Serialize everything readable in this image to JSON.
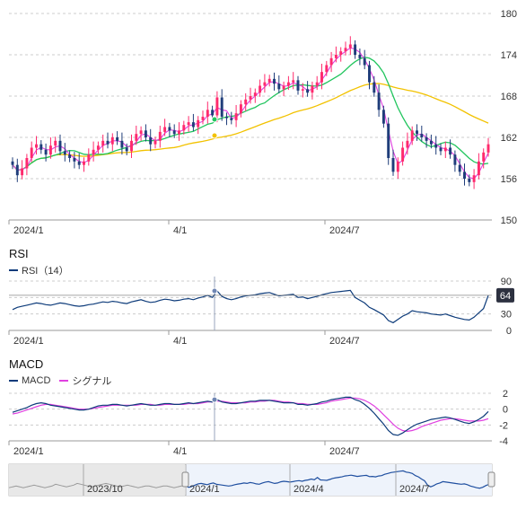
{
  "chart_data": [
    {
      "type": "candlestick",
      "name": "price",
      "ylim": [
        150,
        180
      ],
      "yticks": [
        150,
        156,
        162,
        168,
        174,
        180
      ],
      "xticks": [
        "2024/1",
        "4/1",
        "2024/7"
      ],
      "close": [
        158.0,
        156.5,
        157.5,
        159.0,
        160.5,
        161.0,
        160.2,
        159.5,
        160.8,
        161.5,
        160.0,
        159.5,
        159.0,
        158.5,
        158.0,
        158.5,
        159.5,
        160.2,
        160.8,
        161.5,
        161.0,
        162.0,
        161.5,
        160.5,
        160.0,
        161.5,
        162.5,
        163.0,
        162.0,
        161.0,
        161.5,
        162.8,
        163.5,
        163.0,
        162.5,
        163.0,
        163.8,
        164.2,
        163.5,
        164.5,
        165.0,
        166.0,
        165.2,
        167.8,
        165.0,
        164.8,
        164.5,
        165.5,
        166.8,
        167.5,
        168.0,
        168.5,
        169.5,
        170.0,
        170.5,
        169.8,
        169.0,
        169.5,
        170.0,
        170.3,
        168.8,
        169.0,
        168.5,
        169.5,
        170.0,
        171.5,
        172.5,
        173.5,
        174.0,
        174.5,
        175.0,
        175.5,
        174.0,
        173.5,
        172.5,
        170.0,
        168.5,
        166.0,
        164.0,
        159.0,
        157.0,
        158.5,
        160.5,
        161.5,
        163.0,
        162.5,
        162.0,
        161.5,
        161.0,
        160.5,
        160.0,
        160.5,
        159.5,
        158.0,
        157.0,
        156.0,
        155.5,
        156.5,
        158.5,
        159.8,
        161.0
      ],
      "rsi_ylim": [
        0,
        90
      ],
      "rsi_yticks": [
        0,
        30,
        60,
        90
      ],
      "macd_ylim": [
        -4,
        2
      ],
      "macd_yticks": [
        -4,
        -2,
        0,
        2
      ],
      "navigator_xticks": [
        "2023/10",
        "2024/1",
        "2024/4",
        "2024/7"
      ]
    }
  ],
  "rsi": {
    "title": "RSI",
    "legend": "RSI（14）",
    "current_badge": "64",
    "values": [
      38,
      42,
      44,
      46,
      48,
      50,
      49,
      47,
      46,
      48,
      50,
      49,
      47,
      45,
      44,
      45,
      47,
      48,
      50,
      52,
      51,
      53,
      52,
      50,
      49,
      52,
      54,
      56,
      53,
      51,
      52,
      55,
      57,
      56,
      54,
      55,
      57,
      58,
      56,
      59,
      61,
      64,
      60,
      72,
      62,
      58,
      56,
      58,
      61,
      63,
      64,
      65,
      67,
      68,
      69,
      66,
      63,
      64,
      65,
      66,
      60,
      61,
      58,
      60,
      62,
      65,
      67,
      69,
      70,
      71,
      72,
      73,
      60,
      55,
      50,
      42,
      38,
      33,
      28,
      18,
      14,
      20,
      26,
      30,
      36,
      34,
      33,
      32,
      30,
      29,
      28,
      30,
      27,
      24,
      22,
      20,
      19,
      24,
      32,
      40,
      64
    ],
    "color": "#0d3b7a"
  },
  "macd": {
    "title": "MACD",
    "legend_macd": "MACD",
    "legend_signal": "シグナル",
    "macd_values": [
      -0.4,
      -0.2,
      0,
      0.2,
      0.5,
      0.7,
      0.8,
      0.7,
      0.5,
      0.4,
      0.3,
      0.2,
      0.1,
      0,
      -0.1,
      -0.1,
      0,
      0.2,
      0.4,
      0.5,
      0.5,
      0.6,
      0.6,
      0.5,
      0.4,
      0.5,
      0.6,
      0.7,
      0.6,
      0.5,
      0.5,
      0.6,
      0.7,
      0.7,
      0.6,
      0.6,
      0.7,
      0.8,
      0.7,
      0.8,
      0.9,
      1.0,
      0.9,
      1.2,
      0.9,
      0.8,
      0.7,
      0.7,
      0.8,
      0.9,
      1.0,
      1.0,
      1.1,
      1.1,
      1.1,
      1.0,
      0.9,
      0.8,
      0.8,
      0.8,
      0.6,
      0.6,
      0.5,
      0.6,
      0.7,
      0.9,
      1.0,
      1.2,
      1.3,
      1.4,
      1.5,
      1.5,
      1.2,
      1.0,
      0.6,
      0.1,
      -0.5,
      -1.2,
      -1.9,
      -2.7,
      -3.2,
      -3.3,
      -3.0,
      -2.6,
      -2.2,
      -1.9,
      -1.7,
      -1.5,
      -1.3,
      -1.2,
      -1.1,
      -1.0,
      -1.1,
      -1.3,
      -1.5,
      -1.7,
      -1.8,
      -1.6,
      -1.3,
      -0.9,
      -0.3
    ],
    "signal_values": [
      -0.6,
      -0.5,
      -0.3,
      -0.1,
      0.1,
      0.3,
      0.5,
      0.6,
      0.6,
      0.5,
      0.4,
      0.3,
      0.2,
      0.1,
      0,
      0,
      0,
      0.1,
      0.2,
      0.3,
      0.4,
      0.5,
      0.5,
      0.5,
      0.5,
      0.5,
      0.5,
      0.6,
      0.6,
      0.6,
      0.5,
      0.5,
      0.6,
      0.6,
      0.6,
      0.6,
      0.6,
      0.7,
      0.7,
      0.7,
      0.8,
      0.9,
      0.9,
      1.0,
      1.0,
      0.9,
      0.8,
      0.8,
      0.8,
      0.8,
      0.9,
      0.9,
      1.0,
      1.0,
      1.1,
      1.1,
      1.0,
      0.9,
      0.9,
      0.8,
      0.7,
      0.7,
      0.6,
      0.6,
      0.6,
      0.7,
      0.8,
      1.0,
      1.1,
      1.2,
      1.3,
      1.4,
      1.4,
      1.3,
      1.1,
      0.8,
      0.4,
      -0.1,
      -0.7,
      -1.3,
      -1.9,
      -2.4,
      -2.7,
      -2.8,
      -2.7,
      -2.5,
      -2.2,
      -2.0,
      -1.8,
      -1.6,
      -1.4,
      -1.3,
      -1.2,
      -1.2,
      -1.3,
      -1.4,
      -1.5,
      -1.5,
      -1.5,
      -1.4,
      -1.2
    ],
    "macd_color": "#0d3b7a",
    "signal_color": "#e040e0"
  },
  "navigator": {
    "label_2023_10": "2023/10",
    "label_2024_1": "2024/1",
    "label_2024_4": "2024/4",
    "label_2024_7": "2024/7",
    "past_values": [
      156,
      157,
      158,
      157,
      156,
      157,
      158,
      159,
      158,
      157,
      156,
      157,
      158,
      160,
      159,
      158,
      157,
      158,
      159,
      161,
      160,
      159,
      158,
      157,
      158,
      159,
      160,
      161,
      160,
      159,
      158,
      157,
      158,
      159,
      158,
      157,
      156,
      157,
      158,
      158,
      157,
      156,
      157,
      158,
      158,
      157,
      156,
      157,
      158,
      158
    ]
  },
  "colors": {
    "up": "#ff2a6d",
    "down": "#1f3d7a",
    "ma_short": "#e040e0",
    "ma_mid": "#22c55e",
    "ma_long": "#f2c200",
    "grid": "#cccccc",
    "crosshair": "#98a6bd"
  }
}
